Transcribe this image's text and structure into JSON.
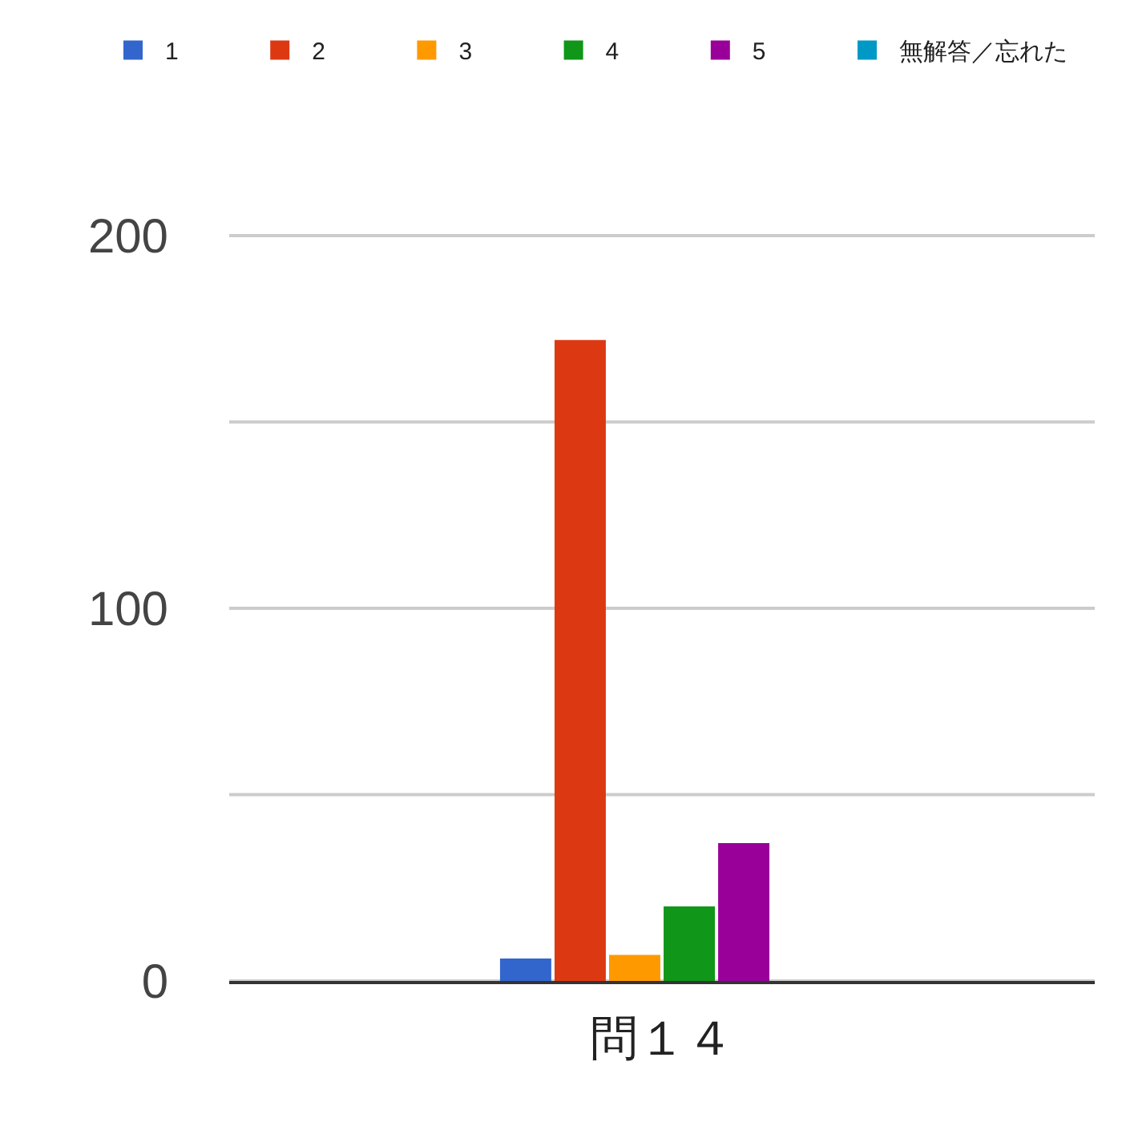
{
  "chart_data": {
    "type": "bar",
    "categories": [
      "問１４"
    ],
    "series": [
      {
        "name": "1",
        "color": "#3366cc",
        "values": [
          6
        ]
      },
      {
        "name": "2",
        "color": "#dc3912",
        "values": [
          172
        ]
      },
      {
        "name": "3",
        "color": "#ff9900",
        "values": [
          7
        ]
      },
      {
        "name": "4",
        "color": "#109618",
        "values": [
          20
        ]
      },
      {
        "name": "5",
        "color": "#990099",
        "values": [
          37
        ]
      },
      {
        "name": "無解答／忘れた",
        "color": "#0099c6",
        "values": [
          0
        ]
      }
    ],
    "ylim": [
      0,
      200
    ],
    "yticks": [
      0,
      {
        "value": 50,
        "label": null
      },
      100,
      {
        "value": 150,
        "label": null
      },
      200
    ],
    "grid": "y",
    "legend": "top"
  }
}
